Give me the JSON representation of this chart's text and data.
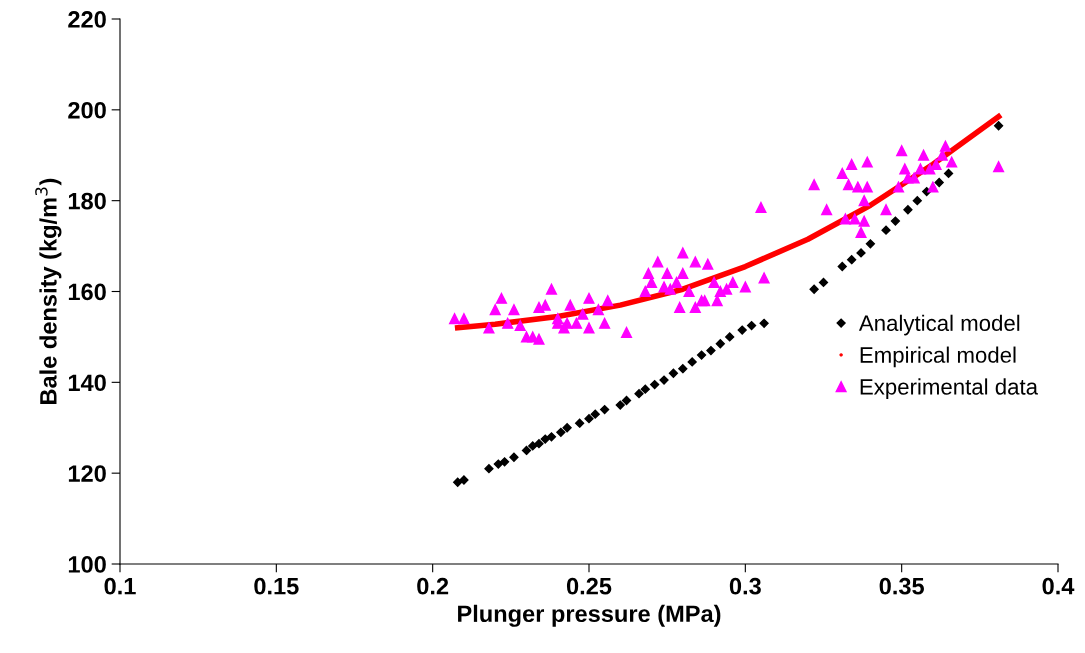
{
  "chart_data": {
    "type": "scatter",
    "xlabel": "Plunger pressure (MPa)",
    "ylabel": "Bale density (kg/m$^{3}$)",
    "xlim": [
      0.1,
      0.4
    ],
    "xticks": [
      0.1,
      0.15,
      0.2,
      0.25,
      0.3,
      0.35,
      0.4
    ],
    "ylim": [
      100,
      220
    ],
    "yticks": [
      100,
      120,
      140,
      160,
      180,
      200,
      220
    ],
    "grid": false,
    "legend": "right",
    "series": [
      {
        "name": "Analytical model",
        "marker": "diamond",
        "color": "#000000",
        "x": [
          0.208,
          0.21,
          0.218,
          0.221,
          0.223,
          0.226,
          0.23,
          0.232,
          0.234,
          0.236,
          0.238,
          0.241,
          0.243,
          0.247,
          0.25,
          0.252,
          0.255,
          0.26,
          0.262,
          0.266,
          0.268,
          0.271,
          0.274,
          0.277,
          0.28,
          0.283,
          0.286,
          0.289,
          0.292,
          0.295,
          0.299,
          0.302,
          0.306,
          0.322,
          0.325,
          0.331,
          0.334,
          0.337,
          0.34,
          0.345,
          0.348,
          0.352,
          0.355,
          0.358,
          0.362,
          0.365,
          0.381
        ],
        "values": [
          118,
          118.5,
          121,
          122,
          122.5,
          123.5,
          125,
          126,
          126.5,
          127.5,
          128,
          129,
          130,
          131,
          132,
          133,
          134,
          135,
          136,
          137.5,
          138.5,
          139.5,
          140.5,
          142,
          143,
          144.5,
          146,
          147,
          148.5,
          150,
          151.5,
          152.5,
          153,
          160.5,
          162,
          165.5,
          167,
          168.5,
          170.5,
          173.5,
          175.5,
          178,
          180,
          182,
          184,
          186,
          196.5
        ]
      },
      {
        "name": "Empirical model",
        "type": "line",
        "marker": "none",
        "color": "#ff0000",
        "x": [
          0.208,
          0.22,
          0.24,
          0.26,
          0.28,
          0.3,
          0.32,
          0.34,
          0.36,
          0.381
        ],
        "values": [
          152,
          152.8,
          154.5,
          157,
          160.5,
          165.5,
          171.5,
          179,
          188,
          198.5
        ]
      },
      {
        "name": "Experimental data",
        "marker": "triangle",
        "color": "#ff00ff",
        "x": [
          0.207,
          0.21,
          0.218,
          0.22,
          0.222,
          0.224,
          0.226,
          0.228,
          0.23,
          0.232,
          0.234,
          0.234,
          0.236,
          0.238,
          0.24,
          0.24,
          0.242,
          0.243,
          0.244,
          0.246,
          0.248,
          0.25,
          0.25,
          0.253,
          0.255,
          0.256,
          0.262,
          0.268,
          0.269,
          0.27,
          0.272,
          0.274,
          0.275,
          0.276,
          0.278,
          0.279,
          0.28,
          0.28,
          0.282,
          0.284,
          0.284,
          0.286,
          0.287,
          0.288,
          0.29,
          0.291,
          0.292,
          0.294,
          0.296,
          0.3,
          0.305,
          0.306,
          0.322,
          0.326,
          0.331,
          0.332,
          0.333,
          0.334,
          0.335,
          0.336,
          0.337,
          0.338,
          0.338,
          0.339,
          0.339,
          0.345,
          0.349,
          0.35,
          0.351,
          0.352,
          0.354,
          0.356,
          0.357,
          0.359,
          0.36,
          0.361,
          0.363,
          0.364,
          0.366,
          0.381
        ],
        "values": [
          154,
          154,
          152,
          156,
          158.5,
          153,
          156,
          152.5,
          150,
          150,
          149.5,
          156.5,
          157,
          160.5,
          154,
          153,
          152,
          153,
          157,
          153,
          155,
          158.5,
          152,
          156,
          153,
          158,
          151,
          160,
          164,
          162,
          166.5,
          161,
          164,
          160.5,
          162,
          156.5,
          164,
          168.5,
          160,
          156.5,
          166.5,
          158,
          158,
          166,
          162,
          158,
          160,
          160.5,
          162,
          161,
          178.5,
          163,
          183.5,
          178,
          186,
          176,
          183.5,
          188,
          176,
          183,
          173,
          175.5,
          180,
          183,
          188.5,
          178,
          183,
          191,
          187,
          185,
          185,
          187,
          190,
          187,
          183,
          188,
          190,
          192,
          188.5,
          187.5
        ]
      }
    ]
  }
}
